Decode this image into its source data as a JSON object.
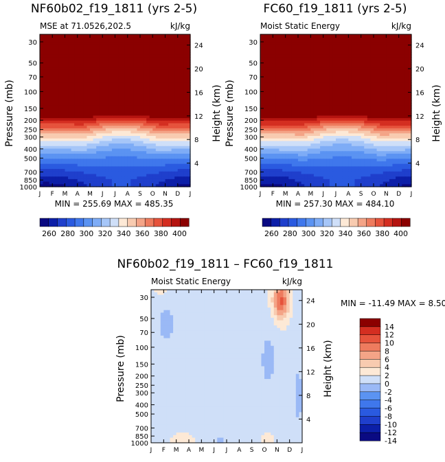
{
  "chart_data": [
    {
      "type": "heatmap",
      "title": "NF60b02_f19_1811 (yrs 2-5)",
      "subtitle_left": "MSE at 71.0526,202.5",
      "units": "kJ/kg",
      "xlabel": "",
      "ylabel": "Pressure (mb)",
      "ylabel_right": "Height (km)",
      "x_ticks": [
        "J",
        "F",
        "M",
        "A",
        "M",
        "J",
        "J",
        "A",
        "S",
        "O",
        "N",
        "D",
        "J"
      ],
      "pressure_ticks": [
        30,
        50,
        70,
        100,
        150,
        200,
        250,
        300,
        400,
        500,
        700,
        850,
        1000
      ],
      "height_ticks": [
        4,
        8,
        12,
        16,
        20,
        24
      ],
      "min_label": "MIN = 255.69 MAX = 485.35",
      "colorbar_ticks": [
        260,
        280,
        300,
        320,
        340,
        360,
        380,
        400
      ],
      "colorbar_range": [
        250,
        410
      ]
    },
    {
      "type": "heatmap",
      "title": "FC60_f19_1811 (yrs 2-5)",
      "subtitle_left": "Moist Static Energy",
      "units": "kJ/kg",
      "xlabel": "",
      "ylabel": "Pressure (mb)",
      "ylabel_right": "Height (km)",
      "x_ticks": [
        "J",
        "F",
        "M",
        "A",
        "M",
        "J",
        "J",
        "A",
        "S",
        "O",
        "N",
        "D",
        "J"
      ],
      "pressure_ticks": [
        30,
        50,
        70,
        100,
        150,
        200,
        250,
        300,
        400,
        500,
        700,
        850,
        1000
      ],
      "height_ticks": [
        4,
        8,
        12,
        16,
        20,
        24
      ],
      "min_label": "MIN = 257.30 MAX = 484.10",
      "colorbar_ticks": [
        260,
        280,
        300,
        320,
        340,
        360,
        380,
        400
      ],
      "colorbar_range": [
        250,
        410
      ]
    },
    {
      "type": "heatmap",
      "title": "NF60b02_f19_1811 – FC60_f19_1811",
      "subtitle_left": "Moist Static Energy",
      "units": "kJ/kg",
      "xlabel": "",
      "ylabel": "Pressure (mb)",
      "ylabel_right": "Height (km)",
      "x_ticks": [
        "J",
        "F",
        "M",
        "A",
        "M",
        "J",
        "J",
        "A",
        "S",
        "O",
        "N",
        "D",
        "J"
      ],
      "pressure_ticks": [
        30,
        50,
        70,
        100,
        150,
        200,
        250,
        300,
        400,
        500,
        700,
        850,
        1000
      ],
      "height_ticks": [
        4,
        8,
        12,
        16,
        20,
        24
      ],
      "min_label": "MIN = -11.49 MAX =    8.50",
      "colorbar_ticks": [
        14,
        12,
        10,
        8,
        6,
        4,
        2,
        0,
        -2,
        -4,
        -6,
        -8,
        -10,
        -12,
        -14
      ],
      "colorbar_range": [
        -15,
        15
      ]
    }
  ],
  "colors": {
    "sequential": [
      "#0a0a82",
      "#0c1fa8",
      "#1f3fcc",
      "#2a5ae0",
      "#3f77ec",
      "#5b93f2",
      "#7eacf6",
      "#a6c6f8",
      "#cfdff8",
      "#fde9d6",
      "#f8cbb0",
      "#f4a487",
      "#ee7b5e",
      "#e6533c",
      "#d42e21",
      "#b51410",
      "#8b0000"
    ],
    "diverging": [
      "#0a0a82",
      "#0c1fa8",
      "#1f3fcc",
      "#2a5ae0",
      "#3f77ec",
      "#5b93f2",
      "#9ab9f6",
      "#cfdff8",
      "#fde9d6",
      "#f8cbb0",
      "#f4a487",
      "#ee7b5e",
      "#e6533c",
      "#d42e21",
      "#8b0000"
    ]
  }
}
